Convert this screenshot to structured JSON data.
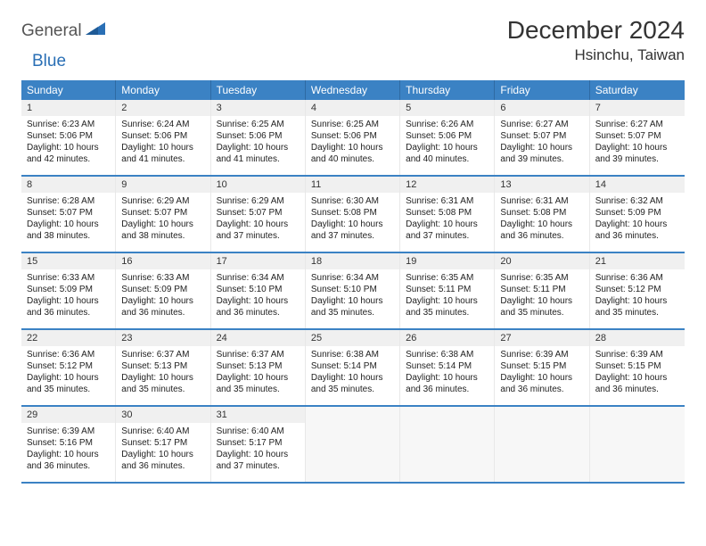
{
  "logo": {
    "word1": "General",
    "word2": "Blue"
  },
  "header": {
    "title": "December 2024",
    "location": "Hsinchu, Taiwan"
  },
  "colors": {
    "header_bg": "#3b82c4",
    "header_text": "#ffffff",
    "daynum_bg": "#f0f0f0",
    "border_accent": "#3b82c4",
    "logo_blue": "#2a6fb5",
    "text": "#333333"
  },
  "dayNames": [
    "Sunday",
    "Monday",
    "Tuesday",
    "Wednesday",
    "Thursday",
    "Friday",
    "Saturday"
  ],
  "weeks": [
    [
      {
        "n": "1",
        "sr": "6:23 AM",
        "ss": "5:06 PM",
        "dl": "10 hours and 42 minutes."
      },
      {
        "n": "2",
        "sr": "6:24 AM",
        "ss": "5:06 PM",
        "dl": "10 hours and 41 minutes."
      },
      {
        "n": "3",
        "sr": "6:25 AM",
        "ss": "5:06 PM",
        "dl": "10 hours and 41 minutes."
      },
      {
        "n": "4",
        "sr": "6:25 AM",
        "ss": "5:06 PM",
        "dl": "10 hours and 40 minutes."
      },
      {
        "n": "5",
        "sr": "6:26 AM",
        "ss": "5:06 PM",
        "dl": "10 hours and 40 minutes."
      },
      {
        "n": "6",
        "sr": "6:27 AM",
        "ss": "5:07 PM",
        "dl": "10 hours and 39 minutes."
      },
      {
        "n": "7",
        "sr": "6:27 AM",
        "ss": "5:07 PM",
        "dl": "10 hours and 39 minutes."
      }
    ],
    [
      {
        "n": "8",
        "sr": "6:28 AM",
        "ss": "5:07 PM",
        "dl": "10 hours and 38 minutes."
      },
      {
        "n": "9",
        "sr": "6:29 AM",
        "ss": "5:07 PM",
        "dl": "10 hours and 38 minutes."
      },
      {
        "n": "10",
        "sr": "6:29 AM",
        "ss": "5:07 PM",
        "dl": "10 hours and 37 minutes."
      },
      {
        "n": "11",
        "sr": "6:30 AM",
        "ss": "5:08 PM",
        "dl": "10 hours and 37 minutes."
      },
      {
        "n": "12",
        "sr": "6:31 AM",
        "ss": "5:08 PM",
        "dl": "10 hours and 37 minutes."
      },
      {
        "n": "13",
        "sr": "6:31 AM",
        "ss": "5:08 PM",
        "dl": "10 hours and 36 minutes."
      },
      {
        "n": "14",
        "sr": "6:32 AM",
        "ss": "5:09 PM",
        "dl": "10 hours and 36 minutes."
      }
    ],
    [
      {
        "n": "15",
        "sr": "6:33 AM",
        "ss": "5:09 PM",
        "dl": "10 hours and 36 minutes."
      },
      {
        "n": "16",
        "sr": "6:33 AM",
        "ss": "5:09 PM",
        "dl": "10 hours and 36 minutes."
      },
      {
        "n": "17",
        "sr": "6:34 AM",
        "ss": "5:10 PM",
        "dl": "10 hours and 36 minutes."
      },
      {
        "n": "18",
        "sr": "6:34 AM",
        "ss": "5:10 PM",
        "dl": "10 hours and 35 minutes."
      },
      {
        "n": "19",
        "sr": "6:35 AM",
        "ss": "5:11 PM",
        "dl": "10 hours and 35 minutes."
      },
      {
        "n": "20",
        "sr": "6:35 AM",
        "ss": "5:11 PM",
        "dl": "10 hours and 35 minutes."
      },
      {
        "n": "21",
        "sr": "6:36 AM",
        "ss": "5:12 PM",
        "dl": "10 hours and 35 minutes."
      }
    ],
    [
      {
        "n": "22",
        "sr": "6:36 AM",
        "ss": "5:12 PM",
        "dl": "10 hours and 35 minutes."
      },
      {
        "n": "23",
        "sr": "6:37 AM",
        "ss": "5:13 PM",
        "dl": "10 hours and 35 minutes."
      },
      {
        "n": "24",
        "sr": "6:37 AM",
        "ss": "5:13 PM",
        "dl": "10 hours and 35 minutes."
      },
      {
        "n": "25",
        "sr": "6:38 AM",
        "ss": "5:14 PM",
        "dl": "10 hours and 35 minutes."
      },
      {
        "n": "26",
        "sr": "6:38 AM",
        "ss": "5:14 PM",
        "dl": "10 hours and 36 minutes."
      },
      {
        "n": "27",
        "sr": "6:39 AM",
        "ss": "5:15 PM",
        "dl": "10 hours and 36 minutes."
      },
      {
        "n": "28",
        "sr": "6:39 AM",
        "ss": "5:15 PM",
        "dl": "10 hours and 36 minutes."
      }
    ],
    [
      {
        "n": "29",
        "sr": "6:39 AM",
        "ss": "5:16 PM",
        "dl": "10 hours and 36 minutes."
      },
      {
        "n": "30",
        "sr": "6:40 AM",
        "ss": "5:17 PM",
        "dl": "10 hours and 36 minutes."
      },
      {
        "n": "31",
        "sr": "6:40 AM",
        "ss": "5:17 PM",
        "dl": "10 hours and 37 minutes."
      },
      null,
      null,
      null,
      null
    ]
  ],
  "labels": {
    "sunrise": "Sunrise:",
    "sunset": "Sunset:",
    "daylight": "Daylight:"
  }
}
